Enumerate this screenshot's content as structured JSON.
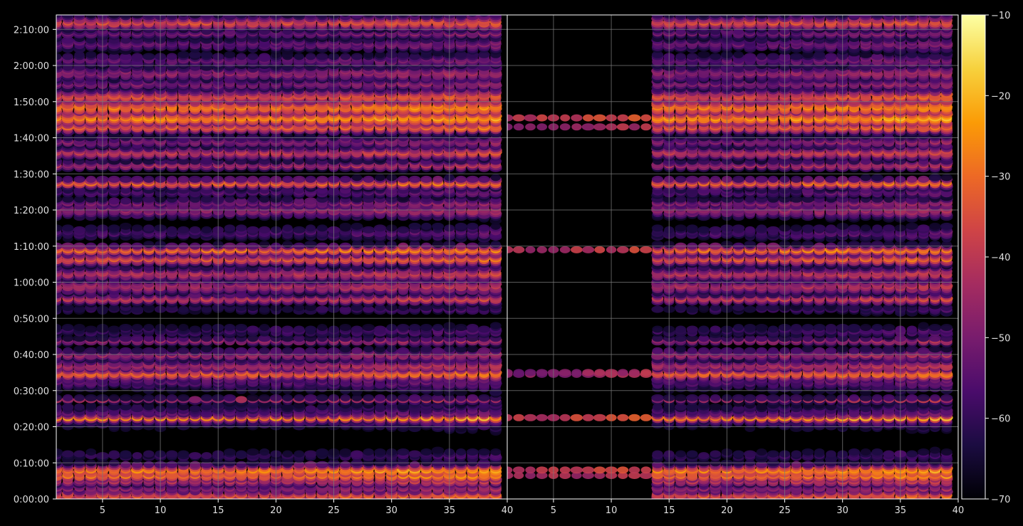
{
  "chart_data": {
    "type": "heatmap",
    "title": "",
    "xlabel": "",
    "ylabel": "",
    "grid": true,
    "background": "#000000",
    "axis_color": "#ffffff",
    "grid_color": "#7a7a7a",
    "colormap": "inferno",
    "colormap_stops": [
      "#000004",
      "#1b0c41",
      "#4a0c6b",
      "#781c6d",
      "#a52c60",
      "#cf4446",
      "#ed6925",
      "#fb9b06",
      "#f7d13d",
      "#fcffa4"
    ],
    "colorbar": {
      "min": -70,
      "max": -10,
      "ticks": [
        -70,
        -60,
        -50,
        -40,
        -30,
        -20,
        -10
      ],
      "tick_labels": [
        "−70",
        "−60",
        "−50",
        "−40",
        "−30",
        "−20",
        "−10"
      ]
    },
    "y_axis": {
      "unit": "seconds",
      "min": 0,
      "max": 8040,
      "ticks": [
        0,
        600,
        1200,
        1800,
        2400,
        3000,
        3600,
        4200,
        4800,
        5400,
        6000,
        6600,
        7200,
        7800
      ],
      "tick_labels": [
        "0:00:00",
        "0:10:00",
        "0:20:00",
        "0:30:00",
        "0:40:00",
        "0:50:00",
        "1:00:00",
        "1:10:00",
        "1:20:00",
        "1:30:00",
        "1:40:00",
        "1:50:00",
        "2:00:00",
        "2:10:00"
      ]
    },
    "panels": [
      {
        "name": "",
        "x_range": [
          1,
          40
        ],
        "data_x_range": [
          1,
          39
        ],
        "x_ticks": [
          5,
          10,
          15,
          20,
          25,
          30,
          35,
          40
        ],
        "x_tick_labels": [
          "5",
          "10",
          "15",
          "20",
          "25",
          "30",
          "35",
          "40"
        ],
        "onset_start": null
      },
      {
        "name": "",
        "x_range": [
          1,
          40
        ],
        "data_x_range": [
          1,
          39
        ],
        "x_ticks": [
          5,
          10,
          15,
          20,
          25,
          30,
          35,
          40
        ],
        "x_tick_labels": [
          "5",
          "10",
          "15",
          "20",
          "25",
          "30",
          "35",
          "40"
        ],
        "onset_start": 14
      }
    ],
    "bands": [
      {
        "t": 60,
        "dB": -34,
        "w": 40
      },
      {
        "t": 180,
        "dB": -48,
        "w": 50
      },
      {
        "t": 300,
        "dB": -42,
        "w": 40
      },
      {
        "t": 390,
        "dB": -30,
        "w": 40
      },
      {
        "t": 480,
        "dB": -27,
        "w": 40
      },
      {
        "t": 720,
        "dB": -62,
        "w": 90
      },
      {
        "t": 1380,
        "dB": -54,
        "w": 160
      },
      {
        "t": 1350,
        "dB": -26,
        "w": 20
      },
      {
        "t": 1650,
        "dB": -45,
        "w": 20
      },
      {
        "t": 1980,
        "dB": -56,
        "w": 160
      },
      {
        "t": 2085,
        "dB": -32,
        "w": 40
      },
      {
        "t": 2220,
        "dB": -44,
        "w": 60
      },
      {
        "t": 2400,
        "dB": -46,
        "w": 50
      },
      {
        "t": 2630,
        "dB": -46,
        "w": 30
      },
      {
        "t": 2790,
        "dB": -60,
        "w": 80
      },
      {
        "t": 3150,
        "dB": -62,
        "w": 70
      },
      {
        "t": 3330,
        "dB": -40,
        "w": 40
      },
      {
        "t": 3540,
        "dB": -44,
        "w": 70
      },
      {
        "t": 3750,
        "dB": -42,
        "w": 60
      },
      {
        "t": 3990,
        "dB": -34,
        "w": 40
      },
      {
        "t": 4140,
        "dB": -29,
        "w": 30
      },
      {
        "t": 4425,
        "dB": -58,
        "w": 100
      },
      {
        "t": 4800,
        "dB": -48,
        "w": 80
      },
      {
        "t": 4920,
        "dB": -50,
        "w": 50
      },
      {
        "t": 5100,
        "dB": -56,
        "w": 60
      },
      {
        "t": 5250,
        "dB": -32,
        "w": 30
      },
      {
        "t": 5550,
        "dB": -44,
        "w": 40
      },
      {
        "t": 5760,
        "dB": -40,
        "w": 50
      },
      {
        "t": 5940,
        "dB": -50,
        "w": 60
      },
      {
        "t": 6180,
        "dB": -33,
        "w": 40
      },
      {
        "t": 6330,
        "dB": -26,
        "w": 50
      },
      {
        "t": 6510,
        "dB": -29,
        "w": 60
      },
      {
        "t": 6690,
        "dB": -36,
        "w": 60
      },
      {
        "t": 6900,
        "dB": -50,
        "w": 60
      },
      {
        "t": 7080,
        "dB": -48,
        "w": 80
      },
      {
        "t": 7290,
        "dB": -54,
        "w": 80
      },
      {
        "t": 7560,
        "dB": -54,
        "w": 90
      },
      {
        "t": 7740,
        "dB": -52,
        "w": 50
      },
      {
        "t": 7920,
        "dB": -36,
        "w": 50
      },
      {
        "t": 8040,
        "dB": -62,
        "w": 40
      }
    ]
  }
}
